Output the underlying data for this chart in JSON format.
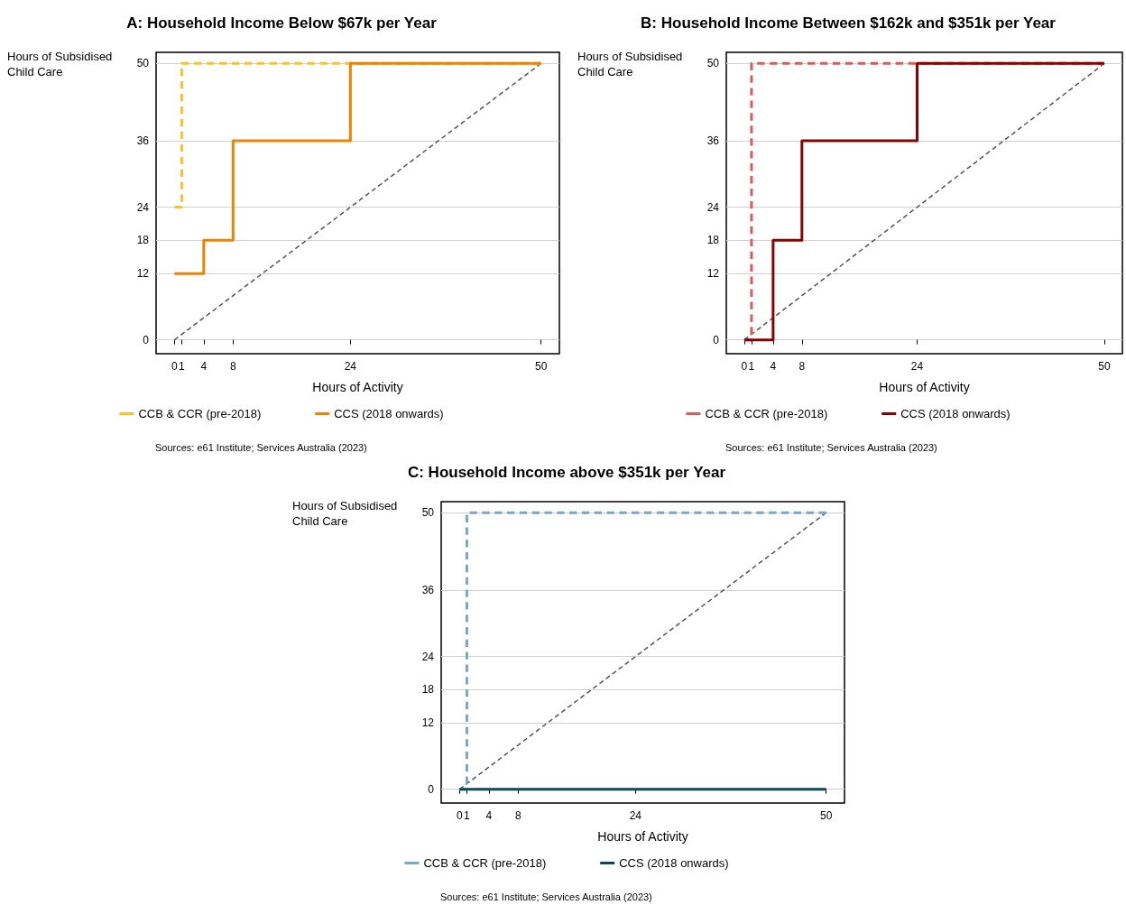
{
  "chart_data": [
    {
      "type": "step",
      "title": "A: Household Income Below $67k per Year",
      "xlabel": "Hours of Activity",
      "ylabel": "Hours of Subsidised Child Care",
      "xlim": [
        -2.5,
        52.5
      ],
      "ylim": [
        -2.5,
        52
      ],
      "xticks": [
        0,
        1,
        4,
        8,
        24,
        50
      ],
      "yticks": [
        0,
        12,
        18,
        24,
        36,
        50
      ],
      "grid": "y",
      "legend": "bottom",
      "annotations": [
        "Sources: e61 Institute; Services Australia (2023)"
      ],
      "series": [
        {
          "name": "CCB & CCR (pre-2018)",
          "color": "#fbc02d",
          "line_style": "dashed",
          "x": [
            0,
            1,
            50
          ],
          "values": [
            24,
            50,
            50
          ]
        },
        {
          "name": "CCS (2018 onwards)",
          "color": "#ef8200",
          "line_style": "solid",
          "x": [
            0,
            4,
            8,
            24,
            50
          ],
          "values": [
            12,
            18,
            36,
            50,
            50
          ]
        },
        {
          "type": "line",
          "color": "#555555",
          "line_style": "dashed",
          "x": [
            0,
            50
          ],
          "values": [
            0,
            50
          ]
        }
      ]
    },
    {
      "type": "step",
      "title": "B: Household Income Between $162k and $351k per Year",
      "xlabel": "Hours of Activity",
      "ylabel": "Hours of Subsidised Child Care",
      "xlim": [
        -2.5,
        52.5
      ],
      "ylim": [
        -2.5,
        52
      ],
      "xticks": [
        0,
        1,
        4,
        8,
        24,
        50
      ],
      "yticks": [
        0,
        12,
        18,
        24,
        36,
        50
      ],
      "grid": "y",
      "legend": "bottom",
      "annotations": [
        "Sources: e61 Institute; Services Australia (2023)"
      ],
      "series": [
        {
          "name": "CCB & CCR (pre-2018)",
          "color": "#db5a5a",
          "line_style": "dashed",
          "x": [
            0,
            1,
            50
          ],
          "values": [
            0,
            50,
            50
          ]
        },
        {
          "name": "CCS (2018 onwards)",
          "color": "#8b0000",
          "line_style": "solid",
          "x": [
            0,
            4,
            8,
            24,
            50
          ],
          "values": [
            0,
            18,
            36,
            50,
            50
          ]
        },
        {
          "type": "line",
          "color": "#555555",
          "line_style": "dashed",
          "x": [
            0,
            50
          ],
          "values": [
            0,
            50
          ]
        }
      ]
    },
    {
      "type": "step",
      "title": "C: Household Income above $351k per Year",
      "xlabel": "Hours of Activity",
      "ylabel": "Hours of Subsidised Child Care",
      "xlim": [
        -2.5,
        52.5
      ],
      "ylim": [
        -2.5,
        52
      ],
      "xticks": [
        0,
        1,
        4,
        8,
        24,
        50
      ],
      "yticks": [
        0,
        12,
        18,
        24,
        36,
        50
      ],
      "grid": "y",
      "legend": "bottom",
      "annotations": [
        "Sources: e61 Institute; Services Australia (2023)"
      ],
      "series": [
        {
          "name": "CCB & CCR (pre-2018)",
          "color": "#7aa8c2",
          "line_style": "dashed",
          "x": [
            0,
            1,
            50
          ],
          "values": [
            0,
            50,
            50
          ]
        },
        {
          "name": "CCS (2018 onwards)",
          "color": "#0b4a5a",
          "line_style": "solid",
          "x": [
            0,
            50
          ],
          "values": [
            0,
            0
          ]
        },
        {
          "type": "line",
          "color": "#555555",
          "line_style": "dashed",
          "x": [
            0,
            50
          ],
          "values": [
            0,
            50
          ]
        }
      ]
    }
  ]
}
